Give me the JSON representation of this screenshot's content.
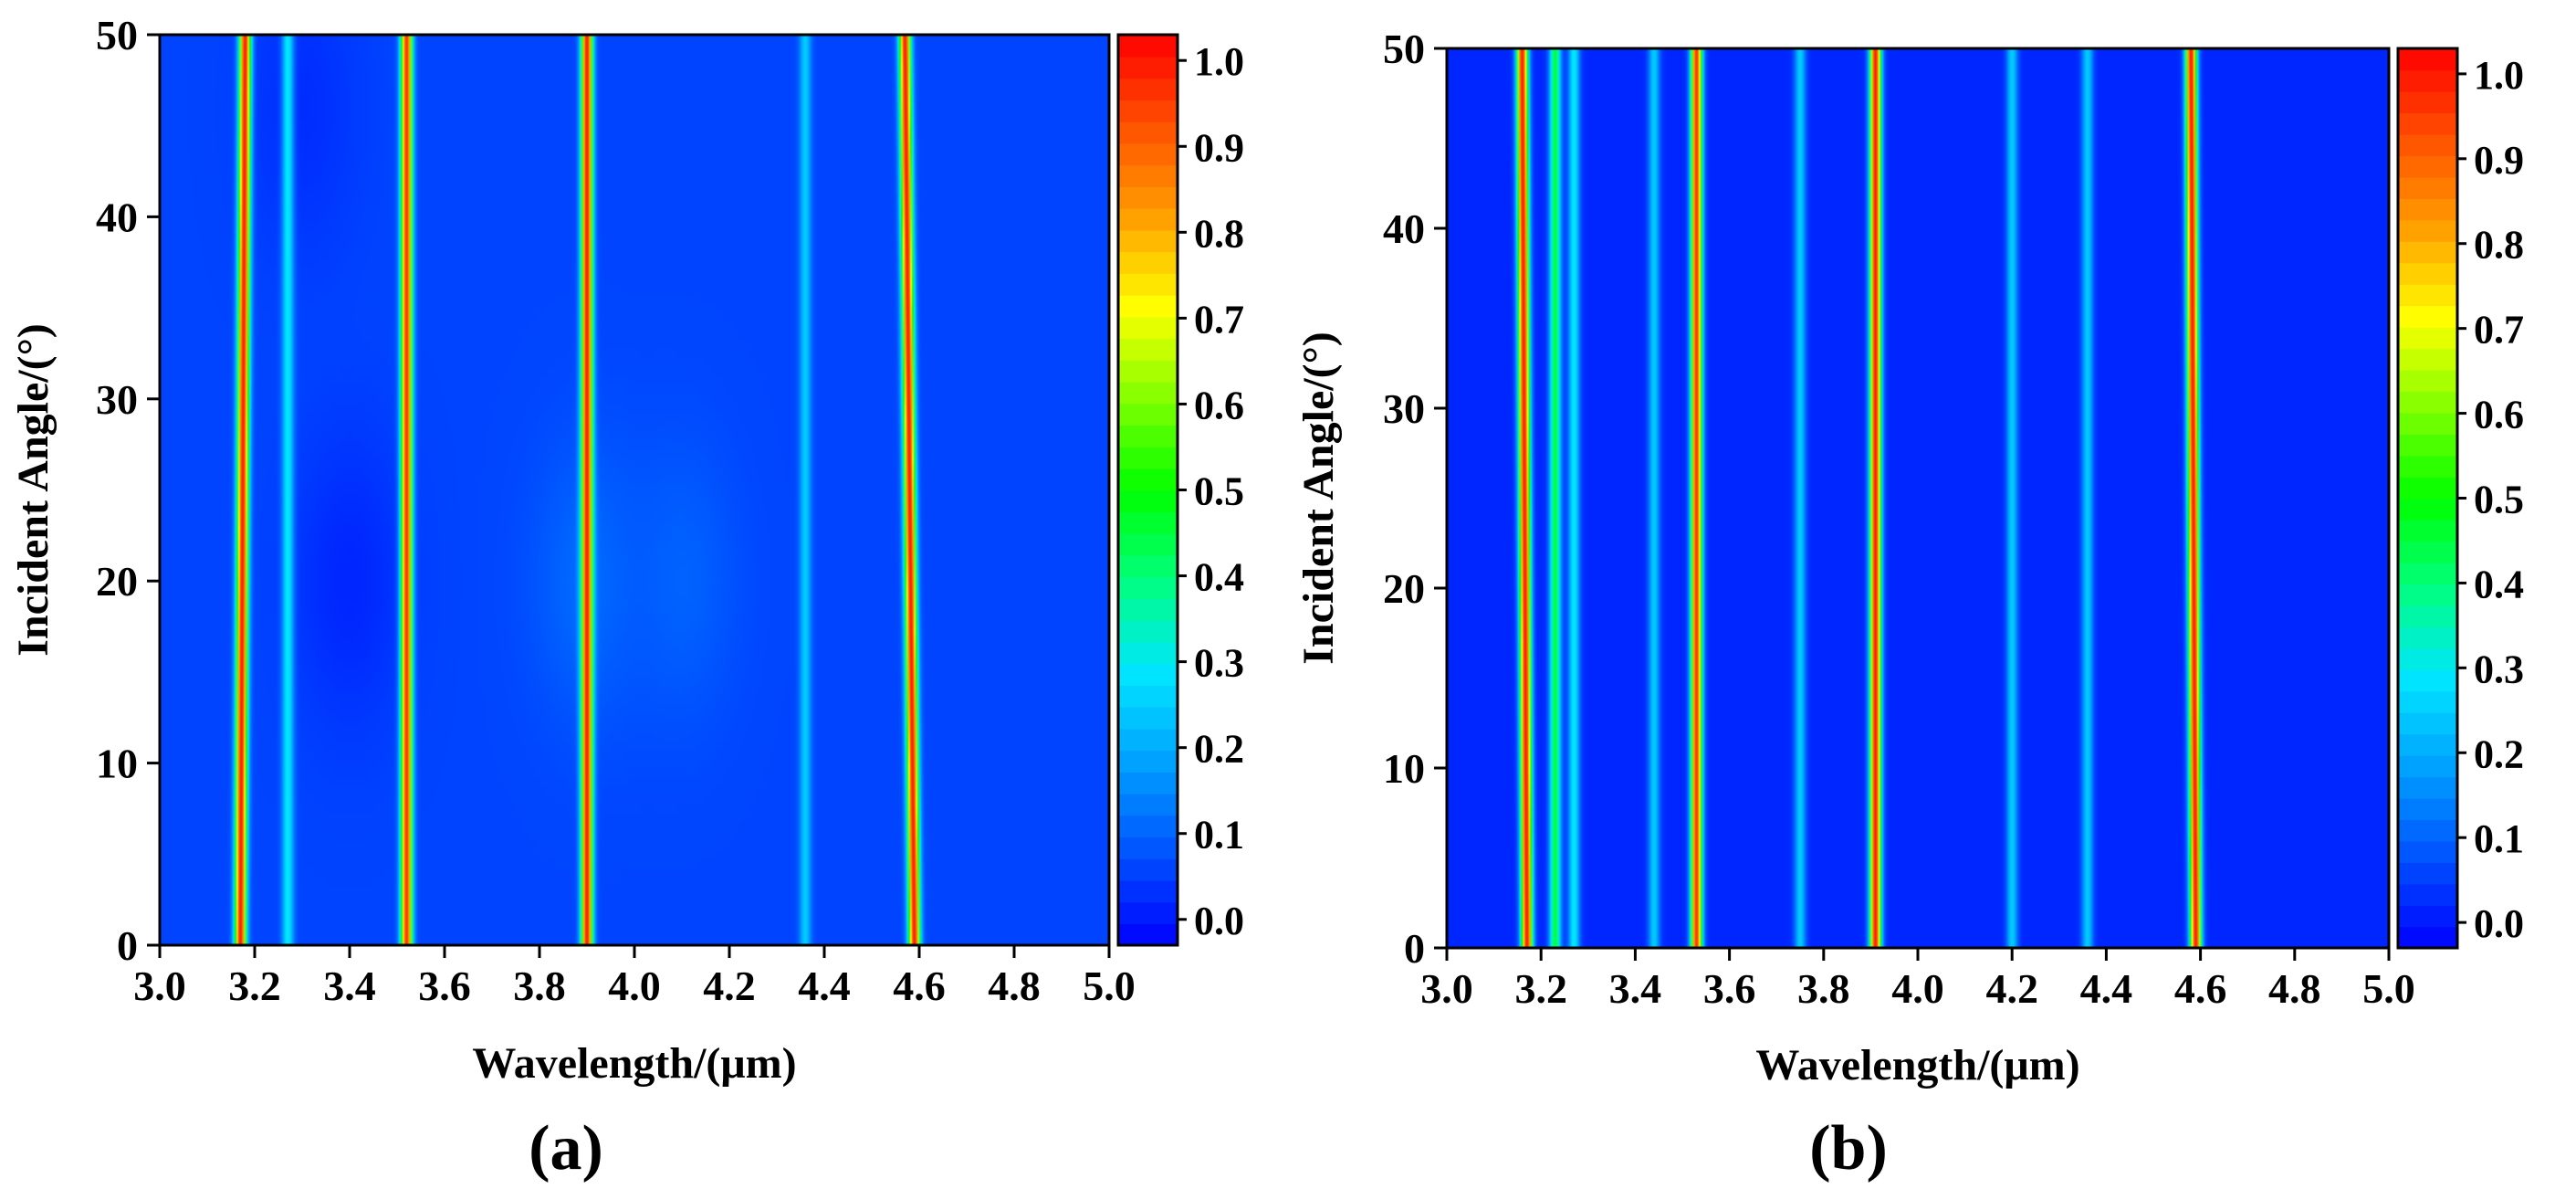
{
  "figure": {
    "panels": [
      "(a)",
      "(b)"
    ]
  },
  "chart_data": [
    {
      "type": "heatmap",
      "panel_label": "(a)",
      "xlabel": "Wavelength/(μm)",
      "ylabel": "Incident Angle/(°)",
      "xlim": [
        3.0,
        5.0
      ],
      "ylim": [
        0,
        50
      ],
      "x_ticks": [
        "3.0",
        "3.2",
        "3.4",
        "3.6",
        "3.8",
        "4.0",
        "4.2",
        "4.4",
        "4.6",
        "4.8",
        "5.0"
      ],
      "y_ticks": [
        "0",
        "10",
        "20",
        "30",
        "40",
        "50"
      ],
      "colorbar": {
        "range": [
          -0.03,
          1.03
        ],
        "ticks": [
          "0.0",
          "0.1",
          "0.2",
          "0.3",
          "0.4",
          "0.5",
          "0.6",
          "0.7",
          "0.8",
          "0.9",
          "1.0"
        ],
        "colors": [
          "#0000ff",
          "#0050ff",
          "#00a0ff",
          "#00e6ff",
          "#00ff80",
          "#00ff00",
          "#80ff00",
          "#ffff00",
          "#ffa000",
          "#ff5000",
          "#ff0000"
        ]
      },
      "background_value": 0.06,
      "blobs": [
        {
          "x": 3.4,
          "y": 20,
          "value": 0.02
        },
        {
          "x": 3.9,
          "y": 20,
          "value": 0.11
        },
        {
          "x": 4.1,
          "y": 20,
          "value": 0.1
        },
        {
          "x": 3.3,
          "y": 46,
          "value": 0.03
        }
      ],
      "peaks": [
        {
          "x_bottom": 3.17,
          "x_top": 3.18,
          "amplitude": 1.0
        },
        {
          "x_bottom": 3.27,
          "x_top": 3.27,
          "amplitude": 0.3
        },
        {
          "x_bottom": 3.52,
          "x_top": 3.52,
          "amplitude": 0.97
        },
        {
          "x_bottom": 3.9,
          "x_top": 3.9,
          "amplitude": 1.0
        },
        {
          "x_bottom": 4.36,
          "x_top": 4.36,
          "amplitude": 0.25
        },
        {
          "x_bottom": 4.59,
          "x_top": 4.57,
          "amplitude": 1.0
        }
      ]
    },
    {
      "type": "heatmap",
      "panel_label": "(b)",
      "xlabel": "Wavelength/(μm)",
      "ylabel": "Incident Angle/(°)",
      "xlim": [
        3.0,
        5.0
      ],
      "ylim": [
        0,
        50
      ],
      "x_ticks": [
        "3.0",
        "3.2",
        "3.4",
        "3.6",
        "3.8",
        "4.0",
        "4.2",
        "4.4",
        "4.6",
        "4.8",
        "5.0"
      ],
      "y_ticks": [
        "0",
        "10",
        "20",
        "30",
        "40",
        "50"
      ],
      "colorbar": {
        "range": [
          -0.03,
          1.03
        ],
        "ticks": [
          "0.0",
          "0.1",
          "0.2",
          "0.3",
          "0.4",
          "0.5",
          "0.6",
          "0.7",
          "0.8",
          "0.9",
          "1.0"
        ],
        "colors": [
          "#0000ff",
          "#0050ff",
          "#00a0ff",
          "#00e6ff",
          "#00ff80",
          "#00ff00",
          "#80ff00",
          "#ffff00",
          "#ffa000",
          "#ff5000",
          "#ff0000"
        ]
      },
      "background_value": 0.02,
      "blobs": [],
      "peaks": [
        {
          "x_bottom": 3.17,
          "x_top": 3.16,
          "amplitude": 1.0
        },
        {
          "x_bottom": 3.23,
          "x_top": 3.23,
          "amplitude": 0.45
        },
        {
          "x_bottom": 3.27,
          "x_top": 3.27,
          "amplitude": 0.3
        },
        {
          "x_bottom": 3.44,
          "x_top": 3.44,
          "amplitude": 0.25
        },
        {
          "x_bottom": 3.53,
          "x_top": 3.53,
          "amplitude": 0.97
        },
        {
          "x_bottom": 3.75,
          "x_top": 3.75,
          "amplitude": 0.25
        },
        {
          "x_bottom": 3.91,
          "x_top": 3.91,
          "amplitude": 1.0
        },
        {
          "x_bottom": 4.2,
          "x_top": 4.2,
          "amplitude": 0.25
        },
        {
          "x_bottom": 4.36,
          "x_top": 4.36,
          "amplitude": 0.25
        },
        {
          "x_bottom": 4.59,
          "x_top": 4.58,
          "amplitude": 1.0
        }
      ]
    }
  ]
}
